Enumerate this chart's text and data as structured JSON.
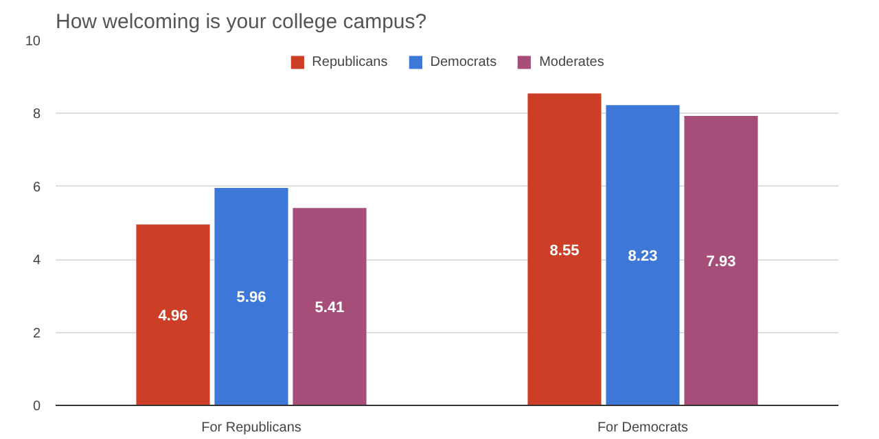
{
  "chart_data": {
    "type": "bar",
    "title": "How welcoming is your college campus?",
    "categories": [
      "For Republicans",
      "For Democrats"
    ],
    "series": [
      {
        "name": "Republicans",
        "color": "#cc3e25",
        "values": [
          4.96,
          8.55
        ]
      },
      {
        "name": "Democrats",
        "color": "#3d78d8",
        "values": [
          5.96,
          8.23
        ]
      },
      {
        "name": "Moderates",
        "color": "#a64d79",
        "values": [
          5.41,
          7.93
        ]
      }
    ],
    "ylim": [
      0,
      10
    ],
    "yticks": [
      0,
      2,
      4,
      6,
      8,
      10
    ],
    "grid": "y",
    "legend": "top",
    "data_labels": true
  }
}
